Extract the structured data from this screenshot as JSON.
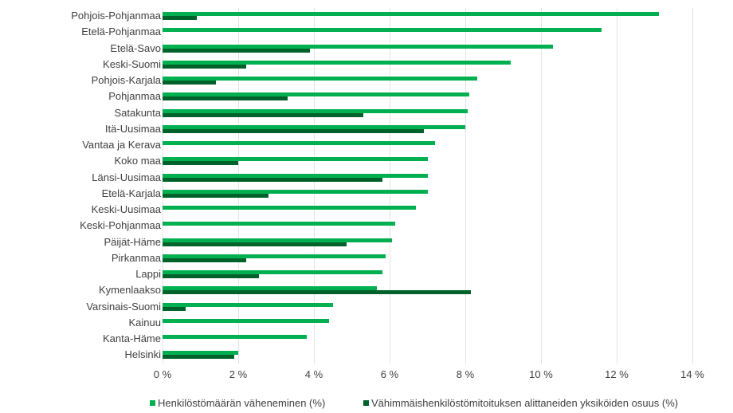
{
  "chart_data": {
    "type": "bar",
    "orientation": "horizontal",
    "title": "",
    "xlabel": "",
    "ylabel": "",
    "xlim": [
      0,
      14
    ],
    "x_ticks": [
      "0 %",
      "2 %",
      "4 %",
      "6 %",
      "8 %",
      "10 %",
      "12 %",
      "14 %"
    ],
    "x_tick_values": [
      0,
      2,
      4,
      6,
      8,
      10,
      12,
      14
    ],
    "grid": "vertical",
    "legend_position": "bottom",
    "categories": [
      "Pohjois-Pohjanmaa",
      "Etelä-Pohjanmaa",
      "Etelä-Savo",
      "Keski-Suomi",
      "Pohjois-Karjala",
      "Pohjanmaa",
      "Satakunta",
      "Itä-Uusimaa",
      "Vantaa ja Kerava",
      "Koko maa",
      "Länsi-Uusimaa",
      "Etelä-Karjala",
      "Keski-Uusimaa",
      "Keski-Pohjanmaa",
      "Päijät-Häme",
      "Pirkanmaa",
      "Lappi",
      "Kymenlaakso",
      "Varsinais-Suomi",
      "Kainuu",
      "Kanta-Häme",
      "Helsinki"
    ],
    "series": [
      {
        "name": "Henkilöstömäärän väheneminen (%)",
        "color": "#00b050",
        "values": [
          13.1,
          11.6,
          10.3,
          9.2,
          8.3,
          8.1,
          8.05,
          8.0,
          7.2,
          7.0,
          7.0,
          7.0,
          6.7,
          6.15,
          6.05,
          5.9,
          5.8,
          5.65,
          4.5,
          4.4,
          3.8,
          2.0
        ]
      },
      {
        "name": "Vähimmäishenkilöstömitoituksen alittaneiden yksiköiden osuus (%)",
        "color": "#00622a",
        "values": [
          0.9,
          null,
          3.9,
          2.2,
          1.4,
          3.3,
          5.3,
          6.9,
          null,
          2.0,
          5.8,
          2.8,
          null,
          null,
          4.85,
          2.2,
          2.55,
          8.15,
          0.6,
          null,
          null,
          1.9
        ]
      }
    ]
  },
  "legend": {
    "items": [
      {
        "label": "Henkilöstömäärän väheneminen (%)",
        "color": "#00b050"
      },
      {
        "label": "Vähimmäishenkilöstömitoituksen alittaneiden yksiköiden osuus (%)",
        "color": "#00622a"
      }
    ]
  }
}
